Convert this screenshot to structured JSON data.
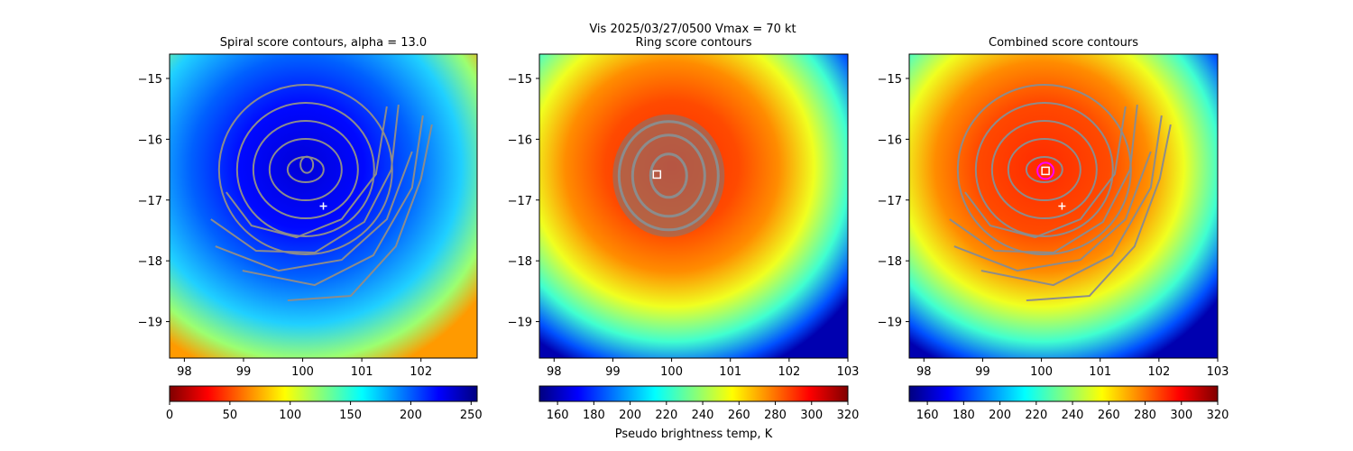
{
  "suptitle_line1": "Vis  2025/03/27/0500    Vmax = 70 kt",
  "chart_data": [
    {
      "type": "heatmap",
      "title": "Spiral score contours, alpha = 13.0",
      "xlim": [
        97.75,
        102.95
      ],
      "ylim": [
        -19.6,
        -14.6
      ],
      "xticks": [
        98,
        99,
        100,
        101,
        102
      ],
      "yticks": [
        -15,
        -16,
        -17,
        -18,
        -19
      ],
      "colormap": "jet",
      "colorbar": {
        "range": [
          0,
          255
        ],
        "ticks": [
          0,
          50,
          100,
          150,
          200,
          250
        ],
        "label": ""
      },
      "center_marker": {
        "type": "plus",
        "lon": 100.35,
        "lat": -17.1
      },
      "eye_contour": {
        "lon": 100.07,
        "lat": -16.42
      },
      "contours": "spiral"
    },
    {
      "type": "heatmap",
      "title": "Ring score contours",
      "xlim": [
        97.75,
        103.0
      ],
      "ylim": [
        -19.6,
        -14.6
      ],
      "xticks": [
        98,
        99,
        100,
        101,
        102,
        103
      ],
      "yticks": [
        -15,
        -16,
        -17,
        -18,
        -19
      ],
      "colormap": "jet_r",
      "colorbar": {
        "range": [
          150,
          320
        ],
        "ticks": [
          160,
          180,
          200,
          220,
          240,
          260,
          280,
          300,
          320
        ],
        "label": "Pseudo brightness temp, K"
      },
      "center_marker": {
        "type": "square",
        "lon": 99.75,
        "lat": -16.58
      },
      "contours": "ring"
    },
    {
      "type": "heatmap",
      "title": "Combined score contours",
      "xlim": [
        97.75,
        103.0
      ],
      "ylim": [
        -19.6,
        -14.6
      ],
      "xticks": [
        98,
        99,
        100,
        101,
        102,
        103
      ],
      "yticks": [
        -15,
        -16,
        -17,
        -18,
        -19
      ],
      "colormap": "jet_r",
      "colorbar": {
        "range": [
          150,
          320
        ],
        "ticks": [
          160,
          180,
          200,
          220,
          240,
          260,
          280,
          300,
          320
        ],
        "label": ""
      },
      "center_marker": {
        "type": "plus",
        "lon": 100.35,
        "lat": -17.1
      },
      "best_center": {
        "type": "square",
        "lon": 100.07,
        "lat": -16.52
      },
      "contours": "spiral"
    }
  ]
}
